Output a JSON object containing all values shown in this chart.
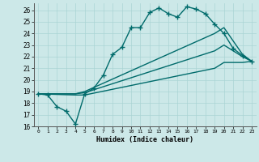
{
  "xlabel": "Humidex (Indice chaleur)",
  "xlim": [
    -0.5,
    23.5
  ],
  "ylim": [
    16,
    26.6
  ],
  "bg_color": "#cce8e8",
  "grid_color": "#aad4d4",
  "line_color": "#006b6b",
  "lw": 1.0,
  "ms": 3.0,
  "line1_x": [
    0,
    1,
    2,
    3,
    4,
    5,
    6,
    7,
    8,
    9,
    10,
    11,
    12,
    13,
    14,
    15,
    16,
    17,
    18,
    19,
    20,
    21,
    22,
    23
  ],
  "line1_y": [
    18.8,
    18.7,
    17.7,
    17.3,
    16.2,
    18.8,
    19.3,
    20.4,
    22.2,
    22.8,
    24.5,
    24.5,
    25.8,
    26.2,
    25.7,
    25.4,
    26.3,
    26.1,
    25.7,
    24.8,
    24.0,
    22.7,
    22.1,
    21.6
  ],
  "line2_x": [
    0,
    4,
    5,
    19,
    20,
    22,
    23
  ],
  "line2_y": [
    18.8,
    18.8,
    19.0,
    24.0,
    24.5,
    22.2,
    21.6
  ],
  "line3_x": [
    0,
    4,
    5,
    19,
    20,
    22,
    23
  ],
  "line3_y": [
    18.8,
    18.8,
    18.9,
    22.5,
    23.0,
    22.0,
    21.6
  ],
  "line4_x": [
    0,
    4,
    5,
    19,
    20,
    22,
    23
  ],
  "line4_y": [
    18.8,
    18.7,
    18.7,
    21.0,
    21.5,
    21.5,
    21.6
  ],
  "xticks": [
    0,
    1,
    2,
    3,
    4,
    5,
    6,
    7,
    8,
    9,
    10,
    11,
    12,
    13,
    14,
    15,
    16,
    17,
    18,
    19,
    20,
    21,
    22,
    23
  ],
  "yticks": [
    16,
    17,
    18,
    19,
    20,
    21,
    22,
    23,
    24,
    25,
    26
  ]
}
